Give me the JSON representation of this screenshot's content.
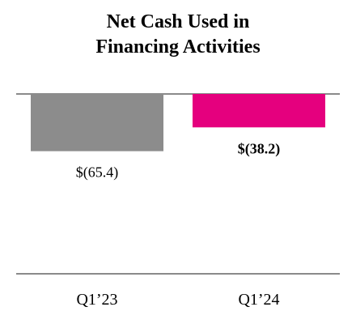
{
  "chart_data": {
    "type": "bar",
    "title_lines": [
      "Net Cash Used in",
      "Financing Activities"
    ],
    "categories": [
      "Q1’23",
      "Q1’24"
    ],
    "values": [
      -65.4,
      -38.2
    ],
    "value_labels": [
      "$(65.4)",
      "$(38.2)"
    ],
    "value_label_bold": [
      false,
      true
    ],
    "colors": [
      "#8c8c8c",
      "#e5007e"
    ],
    "ylim": [
      -200,
      0
    ],
    "grid": false,
    "legend": "none",
    "xlabel": "",
    "ylabel": "",
    "axis_color": "#8a8a8a"
  }
}
